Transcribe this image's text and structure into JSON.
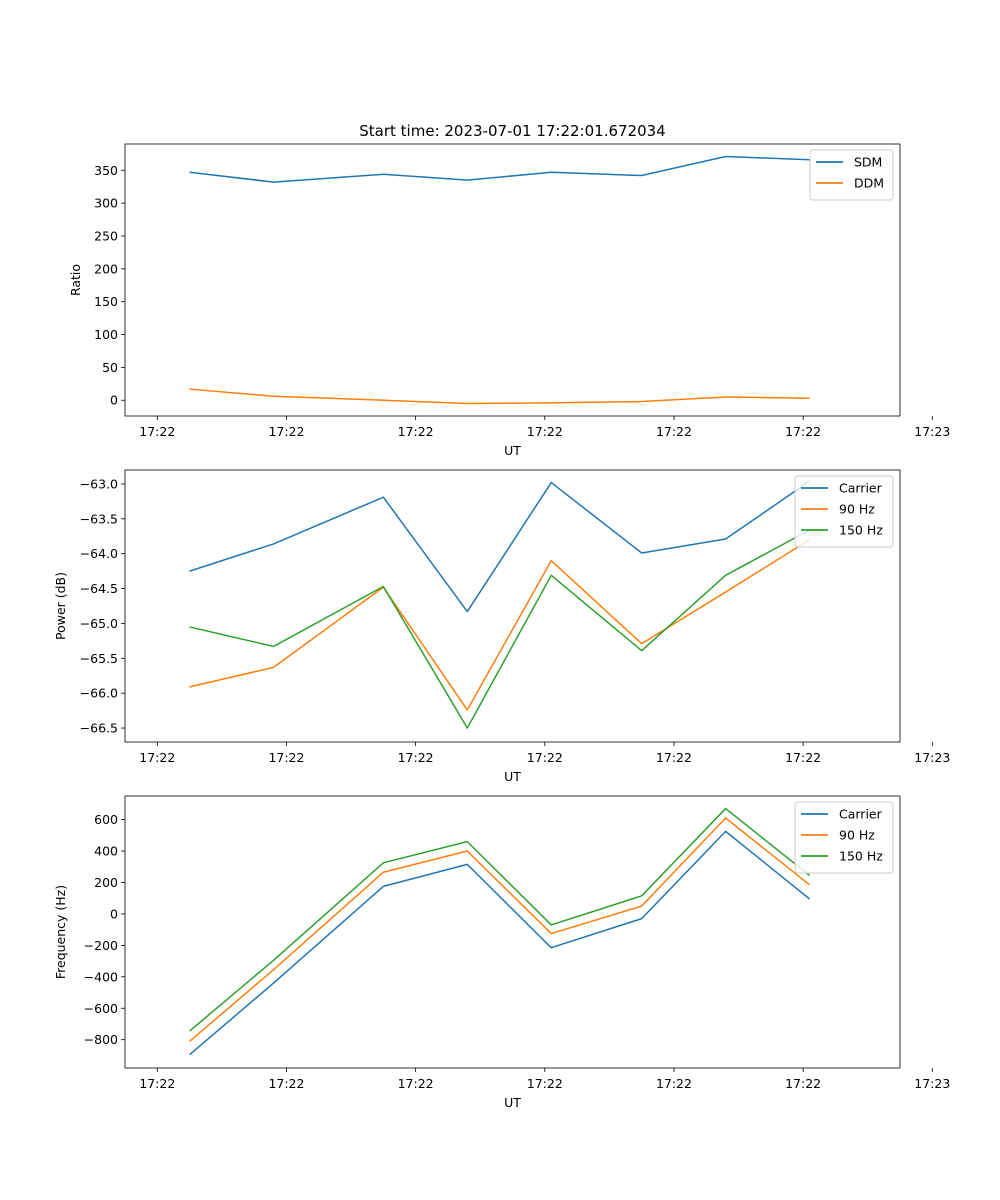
{
  "figure_title": "Start time: 2023-07-01 17:22:01.672034",
  "colors": {
    "blue": "#1f77b4",
    "orange": "#ff7f0e",
    "green": "#2ca02c",
    "axis": "#000000",
    "background": "#ffffff",
    "legend_border": "#cccccc"
  },
  "chart_data": [
    {
      "type": "line",
      "title": "Start time: 2023-07-01 17:22:01.672034",
      "xlabel": "UT",
      "ylabel": "Ratio",
      "xlim": [
        -0.25,
        5.75
      ],
      "ylim": [
        -24,
        390
      ],
      "x_ticks": [
        0,
        1,
        2,
        3,
        4,
        5,
        6
      ],
      "x_tick_labels": [
        "17:22",
        "17:22",
        "17:22",
        "17:22",
        "17:22",
        "17:22",
        "17:23"
      ],
      "y_ticks": [
        0,
        50,
        100,
        150,
        200,
        250,
        300,
        350
      ],
      "y_tick_labels": [
        "0",
        "50",
        "100",
        "150",
        "200",
        "250",
        "300",
        "350"
      ],
      "x": [
        0.25,
        0.9,
        1.75,
        2.4,
        3.05,
        3.75,
        4.4,
        5.05
      ],
      "series": [
        {
          "name": "SDM",
          "color": "#1f77b4",
          "values": [
            347,
            332,
            344,
            335,
            347,
            342,
            371,
            366
          ]
        },
        {
          "name": "DDM",
          "color": "#ff7f0e",
          "values": [
            17,
            6,
            0,
            -5,
            -4,
            -2,
            5,
            3
          ]
        }
      ],
      "legend": "top-right"
    },
    {
      "type": "line",
      "title": "",
      "xlabel": "UT",
      "ylabel": "Power (dB)",
      "xlim": [
        -0.25,
        5.75
      ],
      "ylim": [
        -66.7,
        -62.8
      ],
      "x_ticks": [
        0,
        1,
        2,
        3,
        4,
        5,
        6
      ],
      "x_tick_labels": [
        "17:22",
        "17:22",
        "17:22",
        "17:22",
        "17:22",
        "17:22",
        "17:23"
      ],
      "y_ticks": [
        -66.5,
        -66.0,
        -65.5,
        -65.0,
        -64.5,
        -64.0,
        -63.5,
        -63.0
      ],
      "y_tick_labels": [
        "−66.5",
        "−66.0",
        "−65.5",
        "−65.0",
        "−64.5",
        "−64.0",
        "−63.5",
        "−63.0"
      ],
      "x": [
        0.25,
        0.9,
        1.75,
        2.4,
        3.05,
        3.75,
        4.4,
        5.05
      ],
      "series": [
        {
          "name": "Carrier",
          "color": "#1f77b4",
          "values": [
            -64.25,
            -63.86,
            -63.19,
            -64.83,
            -62.98,
            -63.99,
            -63.79,
            -62.96
          ]
        },
        {
          "name": "90 Hz",
          "color": "#ff7f0e",
          "values": [
            -65.91,
            -65.63,
            -64.48,
            -66.24,
            -64.1,
            -65.29,
            -64.55,
            -63.8
          ]
        },
        {
          "name": "150 Hz",
          "color": "#2ca02c",
          "values": [
            -65.05,
            -65.33,
            -64.47,
            -66.5,
            -64.31,
            -65.39,
            -64.31,
            -63.66
          ]
        }
      ],
      "legend": "top-right"
    },
    {
      "type": "line",
      "title": "",
      "xlabel": "UT",
      "ylabel": "Frequency (Hz)",
      "xlim": [
        -0.25,
        5.75
      ],
      "ylim": [
        -980,
        750
      ],
      "x_ticks": [
        0,
        1,
        2,
        3,
        4,
        5,
        6
      ],
      "x_tick_labels": [
        "17:22",
        "17:22",
        "17:22",
        "17:22",
        "17:22",
        "17:22",
        "17:23"
      ],
      "y_ticks": [
        -800,
        -600,
        -400,
        -200,
        0,
        200,
        400,
        600
      ],
      "y_tick_labels": [
        "−800",
        "−600",
        "−400",
        "−200",
        "0",
        "200",
        "400",
        "600"
      ],
      "x": [
        0.25,
        0.9,
        1.75,
        2.4,
        3.05,
        3.75,
        4.4,
        5.05
      ],
      "series": [
        {
          "name": "Carrier",
          "color": "#1f77b4",
          "values": [
            -895,
            -440,
            175,
            315,
            -215,
            -30,
            525,
            95
          ]
        },
        {
          "name": "90 Hz",
          "color": "#ff7f0e",
          "values": [
            -810,
            -355,
            265,
            400,
            -125,
            50,
            610,
            185
          ]
        },
        {
          "name": "150 Hz",
          "color": "#2ca02c",
          "values": [
            -745,
            -295,
            325,
            460,
            -70,
            115,
            670,
            245
          ]
        }
      ],
      "legend": "top-right"
    }
  ]
}
